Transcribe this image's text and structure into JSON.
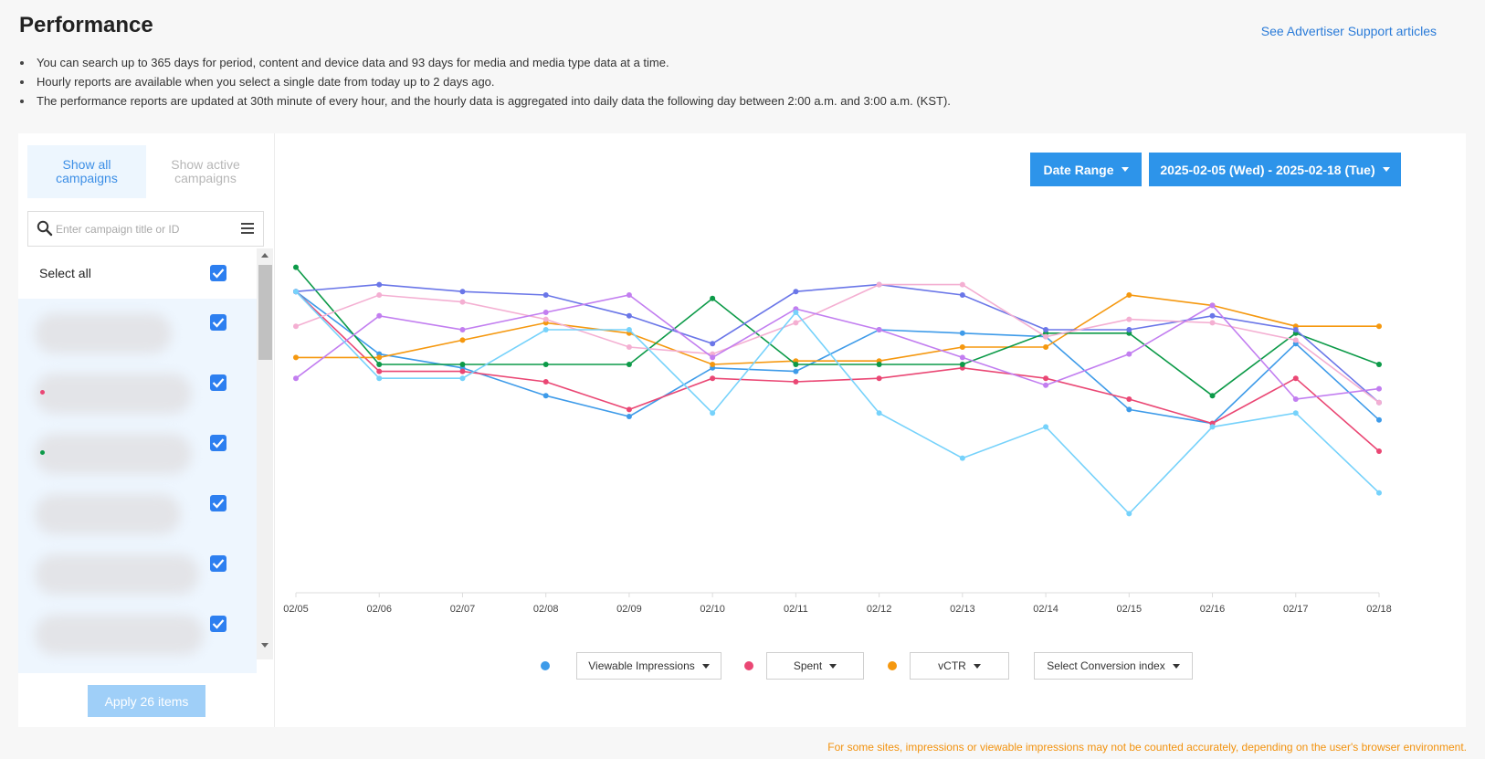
{
  "page": {
    "title": "Performance",
    "support_link": "See Advertiser Support articles",
    "notes": [
      "You can search up to 365 days for period, content and device data and 93 days for media and media type data at a time.",
      "Hourly reports are available when you select a single date from today up to 2 days ago.",
      "The performance reports are updated at 30th minute of every hour, and the hourly data is aggregated into daily data the following day between 2:00 a.m. and 3:00 a.m. (KST)."
    ],
    "footer_note": "For some sites, impressions or viewable impressions may not be counted accurately, depending on the user's browser environment."
  },
  "sidebar": {
    "tab_all": "Show all campaigns",
    "tab_active": "Show active campaigns",
    "search_placeholder": "Enter campaign title or ID",
    "select_all_label": "Select all",
    "select_all_checked": true,
    "campaign_rows": [
      {
        "checked": true,
        "dot_color": ""
      },
      {
        "checked": true,
        "dot_color": "#e94775"
      },
      {
        "checked": true,
        "dot_color": "#0c9a48"
      },
      {
        "checked": true,
        "dot_color": ""
      },
      {
        "checked": true,
        "dot_color": ""
      },
      {
        "checked": true,
        "dot_color": ""
      }
    ],
    "apply_button": "Apply 26 items"
  },
  "toolbar": {
    "date_range_button": "Date Range",
    "date_value_button": "2025-02-05 (Wed) - 2025-02-18 (Tue)"
  },
  "legend": {
    "metric1": {
      "label": "Viewable Impressions",
      "color": "#3e9be9"
    },
    "metric2": {
      "label": "Spent",
      "color": "#ea4774"
    },
    "metric3": {
      "label": "vCTR",
      "color": "#f5980f"
    },
    "conversion": {
      "label": "Select Conversion index"
    }
  },
  "chart_data": {
    "type": "line",
    "x": [
      "02/05",
      "02/06",
      "02/07",
      "02/08",
      "02/09",
      "02/10",
      "02/11",
      "02/12",
      "02/13",
      "02/14",
      "02/15",
      "02/16",
      "02/17",
      "02/18"
    ],
    "ylim": [
      0,
      100
    ],
    "grid": false,
    "series": [
      {
        "color": "#3e9be9",
        "values": [
          86,
          68,
          64,
          56,
          50,
          64,
          63,
          75,
          74,
          73,
          52,
          48,
          71,
          49
        ]
      },
      {
        "color": "#ea4774",
        "values": [
          86,
          63,
          63,
          60,
          52,
          61,
          60,
          61,
          64,
          61,
          55,
          48,
          61,
          40
        ]
      },
      {
        "color": "#f5980f",
        "values": [
          67,
          67,
          72,
          77,
          74,
          65,
          66,
          66,
          70,
          70,
          85,
          82,
          76,
          76
        ]
      },
      {
        "color": "#0c9a48",
        "values": [
          93,
          65,
          65,
          65,
          65,
          84,
          65,
          65,
          65,
          74,
          74,
          56,
          74,
          65
        ]
      },
      {
        "color": "#6a76e8",
        "values": [
          86,
          88,
          86,
          85,
          79,
          71,
          86,
          88,
          85,
          75,
          75,
          79,
          75,
          54
        ]
      },
      {
        "color": "#f4afd2",
        "values": [
          76,
          85,
          83,
          78,
          70,
          68,
          77,
          88,
          88,
          73,
          78,
          77,
          72,
          54
        ]
      },
      {
        "color": "#c27ef0",
        "values": [
          61,
          79,
          75,
          80,
          85,
          67,
          81,
          75,
          67,
          59,
          68,
          82,
          55,
          58
        ]
      },
      {
        "color": "#76d2fb",
        "values": [
          86,
          61,
          61,
          75,
          75,
          51,
          80,
          51,
          38,
          47,
          22,
          47,
          51,
          28
        ]
      }
    ]
  }
}
